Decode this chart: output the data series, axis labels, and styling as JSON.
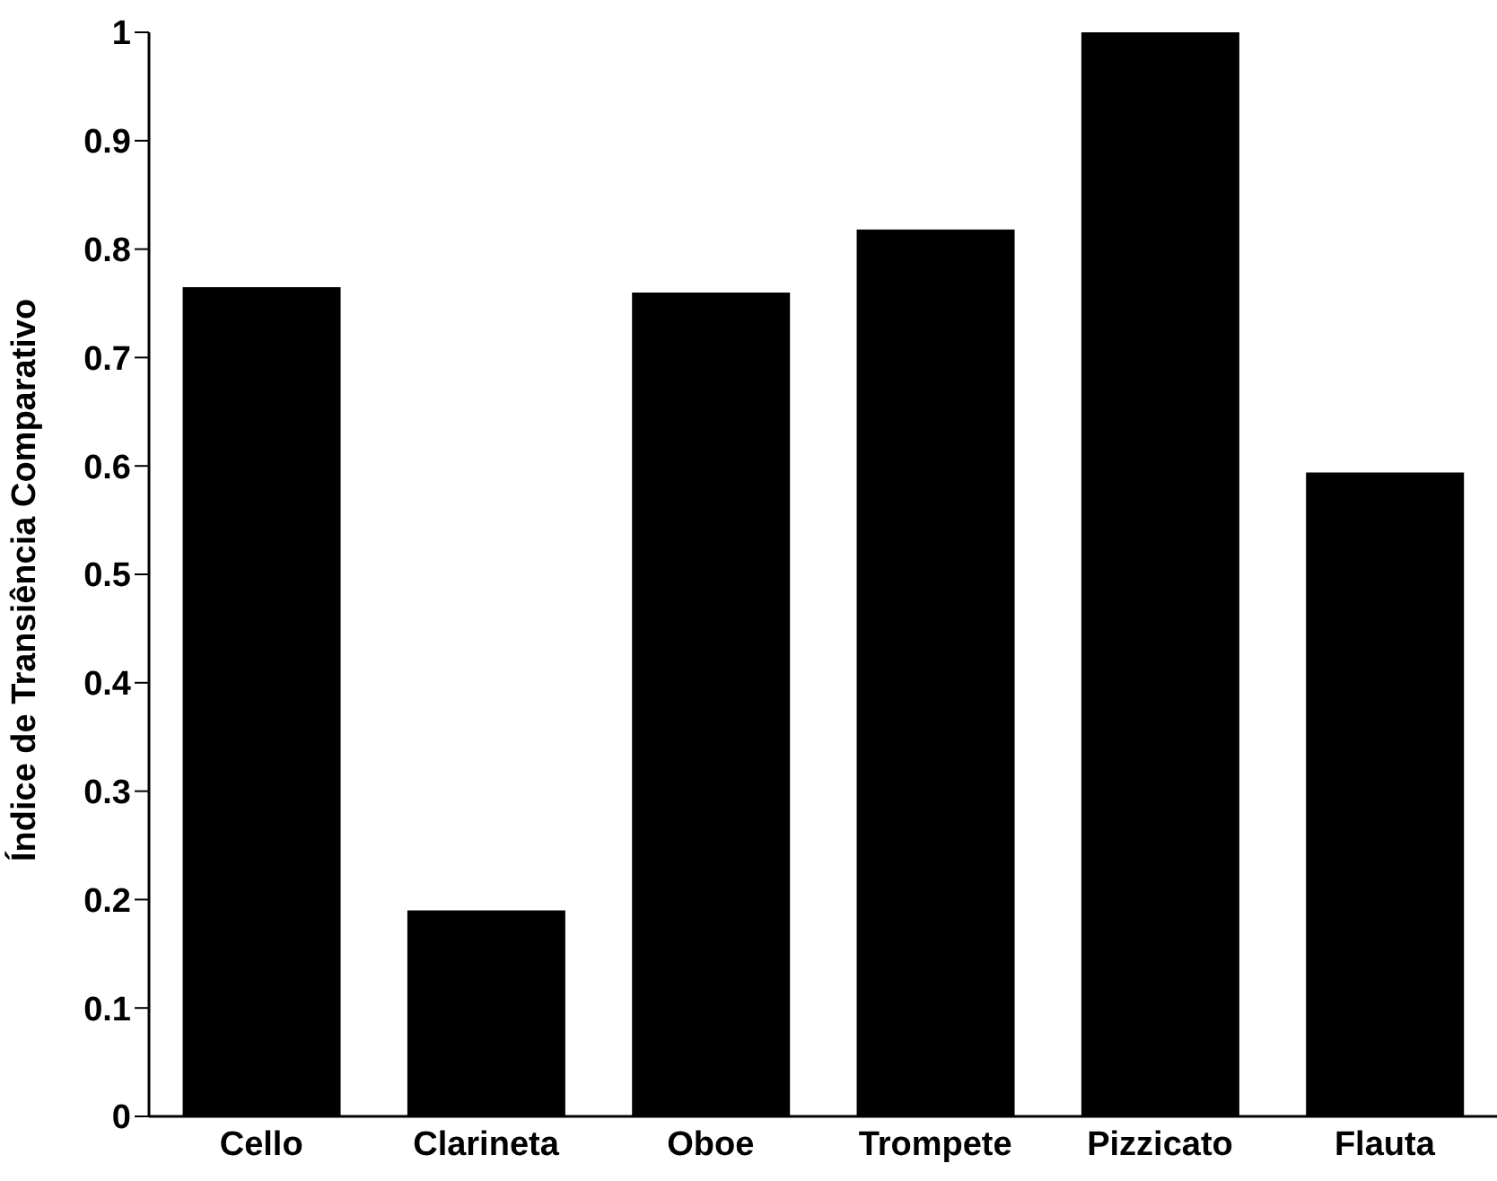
{
  "chart_data": {
    "type": "bar",
    "ylabel": "Índice de Transiência Comparativo",
    "categories": [
      "Cello",
      "Clarineta",
      "Oboe",
      "Trompete",
      "Pizzicato",
      "Flauta"
    ],
    "values": [
      0.765,
      0.19,
      0.76,
      0.818,
      1.0,
      0.594
    ],
    "color": "#000000",
    "ylim": [
      0,
      1
    ],
    "yticks": [
      0,
      0.1,
      0.2,
      0.3,
      0.4,
      0.5,
      0.6,
      0.7,
      0.8,
      0.9,
      1
    ],
    "grid": false
  }
}
